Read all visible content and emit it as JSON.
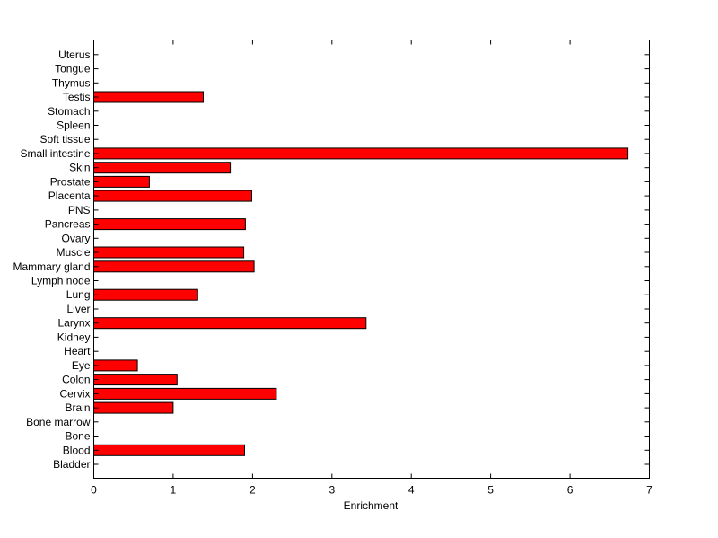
{
  "chart_data": {
    "type": "bar",
    "orientation": "horizontal",
    "title": "",
    "xlabel": "Enrichment",
    "ylabel": "",
    "xlim": [
      0,
      7
    ],
    "xticks": [
      "0",
      "1",
      "2",
      "3",
      "4",
      "5",
      "6",
      "7"
    ],
    "grid": false,
    "legend": "none",
    "bar_color": "#ff0000",
    "categories": [
      "Bladder",
      "Blood",
      "Bone",
      "Bone marrow",
      "Brain",
      "Cervix",
      "Colon",
      "Eye",
      "Heart",
      "Kidney",
      "Larynx",
      "Liver",
      "Lung",
      "Lymph node",
      "Mammary gland",
      "Muscle",
      "Ovary",
      "Pancreas",
      "PNS",
      "Placenta",
      "Prostate",
      "Skin",
      "Small intestine",
      "Soft tissue",
      "Spleen",
      "Stomach",
      "Testis",
      "Thymus",
      "Tongue",
      "Uterus"
    ],
    "values": [
      0,
      1.9,
      0,
      0,
      1.0,
      2.3,
      1.05,
      0.55,
      0,
      0,
      3.43,
      0,
      1.31,
      0,
      2.02,
      1.89,
      0,
      1.91,
      0,
      1.99,
      0.7,
      1.72,
      6.73,
      0,
      0,
      0,
      1.38,
      0,
      0,
      0
    ]
  }
}
